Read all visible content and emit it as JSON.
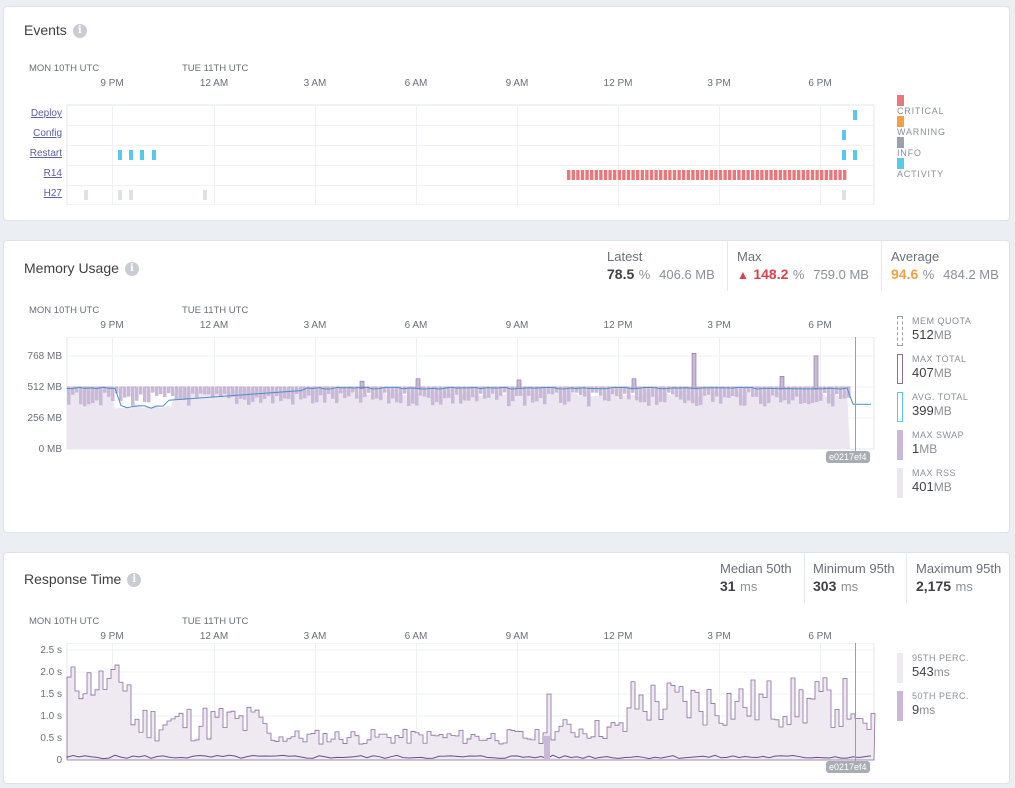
{
  "timeline": {
    "date_labels": [
      {
        "text": "MON 10TH UTC",
        "x": 63
      },
      {
        "text": "TUE 11TH UTC",
        "x": 210
      }
    ],
    "hour_labels": [
      {
        "text": "9 PM",
        "x": 108
      },
      {
        "text": "12 AM",
        "x": 210
      },
      {
        "text": "3 AM",
        "x": 311
      },
      {
        "text": "6 AM",
        "x": 412
      },
      {
        "text": "9 AM",
        "x": 513
      },
      {
        "text": "12 PM",
        "x": 614
      },
      {
        "text": "3 PM",
        "x": 715
      },
      {
        "text": "6 PM",
        "x": 816
      }
    ]
  },
  "events": {
    "title": "Events",
    "rows": [
      {
        "label": "Deploy",
        "ticks": [
          {
            "x": 851,
            "type": "activity"
          }
        ]
      },
      {
        "label": "Config",
        "ticks": [
          {
            "x": 840,
            "type": "activity"
          }
        ]
      },
      {
        "label": "Restart",
        "ticks": [
          {
            "x": 116,
            "type": "activity"
          },
          {
            "x": 127,
            "type": "activity"
          },
          {
            "x": 138,
            "type": "activity"
          },
          {
            "x": 150,
            "type": "activity"
          },
          {
            "x": 840,
            "type": "activity"
          },
          {
            "x": 851,
            "type": "activity"
          }
        ]
      },
      {
        "label": "R14",
        "range": {
          "from": 563,
          "to": 842,
          "type": "critical"
        }
      },
      {
        "label": "H27",
        "ticks": [
          {
            "x": 82,
            "type": "h27"
          },
          {
            "x": 116,
            "type": "h27"
          },
          {
            "x": 127,
            "type": "h27"
          },
          {
            "x": 201,
            "type": "h27"
          },
          {
            "x": 840,
            "type": "h27"
          }
        ]
      }
    ],
    "legend": [
      {
        "label": "CRITICAL",
        "color": "#e8797b"
      },
      {
        "label": "WARNING",
        "color": "#f5a042"
      },
      {
        "label": "INFO",
        "color": "#9aa1ad"
      },
      {
        "label": "ACTIVITY",
        "color": "#56c9f0"
      }
    ]
  },
  "memory": {
    "title": "Memory Usage",
    "stats": {
      "latest": {
        "label": "Latest",
        "pct": "78.5",
        "pct_unit": "%",
        "mb": "406.6 MB"
      },
      "max": {
        "label": "Max",
        "pct": "148.2",
        "pct_unit": "%",
        "mb": "759.0 MB"
      },
      "average": {
        "label": "Average",
        "pct": "94.6",
        "pct_unit": "%",
        "mb": "484.2 MB"
      }
    },
    "y_ticks": [
      "768 MB",
      "512 MB",
      "256 MB",
      "0 MB"
    ],
    "release_tag": "e0217ef4",
    "legend": [
      {
        "label": "MEM QUOTA",
        "value": "512",
        "unit": "MB"
      },
      {
        "label": "MAX TOTAL",
        "value": "407",
        "unit": "MB"
      },
      {
        "label": "AVG. TOTAL",
        "value": "399",
        "unit": "MB"
      },
      {
        "label": "MAX SWAP",
        "value": "1",
        "unit": "MB"
      },
      {
        "label": "MAX RSS",
        "value": "401",
        "unit": "MB"
      }
    ]
  },
  "response": {
    "title": "Response Time",
    "stats": {
      "median": {
        "label": "Median 50th",
        "value": "31",
        "unit": "ms"
      },
      "min95": {
        "label": "Minimum 95th",
        "value": "303",
        "unit": "ms"
      },
      "max95": {
        "label": "Maximum 95th",
        "value": "2,175",
        "unit": "ms"
      }
    },
    "y_ticks": [
      "2.5 s",
      "2.0 s",
      "1.5 s",
      "1.0 s",
      "0.5 s",
      "0"
    ],
    "release_tag": "e0217ef4",
    "legend": [
      {
        "label": "95TH PERC.",
        "value": "543",
        "unit": "ms"
      },
      {
        "label": "50TH PERC.",
        "value": "9",
        "unit": "ms"
      }
    ]
  }
}
